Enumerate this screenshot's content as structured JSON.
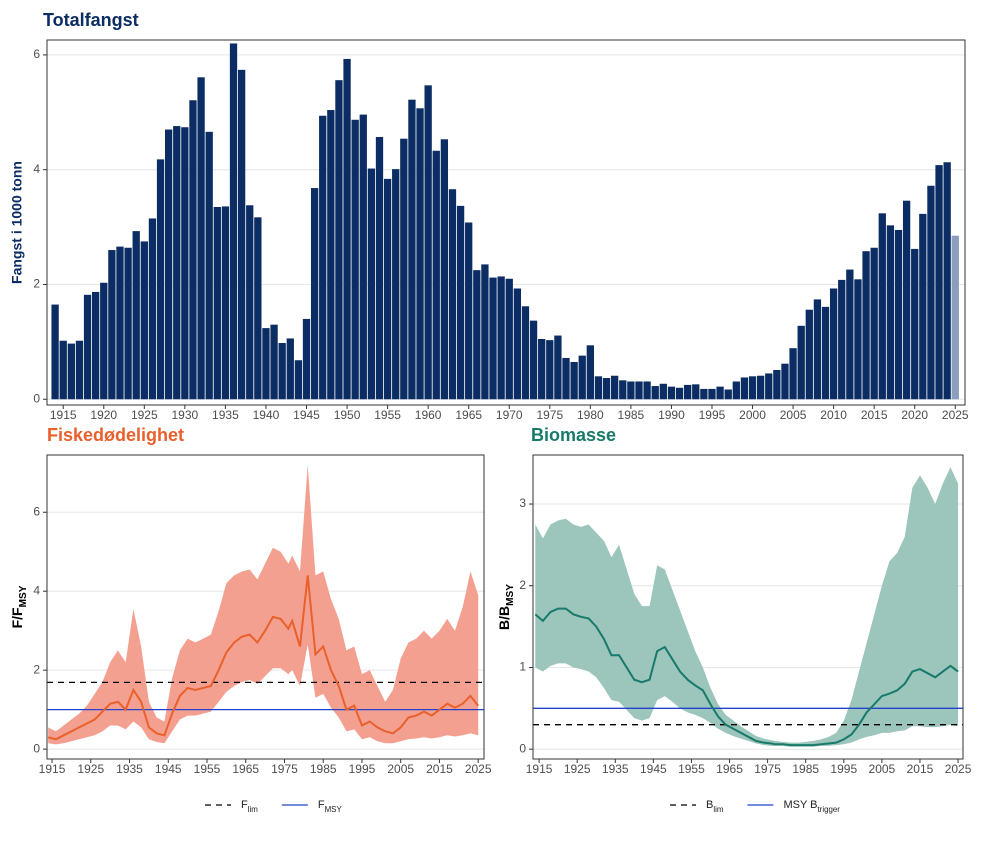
{
  "chart_data": [
    {
      "type": "bar",
      "title": "Totalfangst",
      "title_color": "#0b2d63",
      "ylabel": "Fangst i 1000 tonn",
      "ylabel_color": "#0b2d63",
      "x": [
        1914,
        1915,
        1916,
        1917,
        1918,
        1919,
        1920,
        1921,
        1922,
        1923,
        1924,
        1925,
        1926,
        1927,
        1928,
        1929,
        1930,
        1931,
        1932,
        1933,
        1934,
        1935,
        1936,
        1937,
        1938,
        1939,
        1940,
        1941,
        1942,
        1943,
        1944,
        1945,
        1946,
        1947,
        1948,
        1949,
        1950,
        1951,
        1952,
        1953,
        1954,
        1955,
        1956,
        1957,
        1958,
        1959,
        1960,
        1961,
        1962,
        1963,
        1964,
        1965,
        1966,
        1967,
        1968,
        1969,
        1970,
        1971,
        1972,
        1973,
        1974,
        1975,
        1976,
        1977,
        1978,
        1979,
        1980,
        1981,
        1982,
        1983,
        1984,
        1985,
        1986,
        1987,
        1988,
        1989,
        1990,
        1991,
        1992,
        1993,
        1994,
        1995,
        1996,
        1997,
        1998,
        1999,
        2000,
        2001,
        2002,
        2003,
        2004,
        2005,
        2006,
        2007,
        2008,
        2009,
        2010,
        2011,
        2012,
        2013,
        2014,
        2015,
        2016,
        2017,
        2018,
        2019,
        2020,
        2021,
        2022,
        2023,
        2024,
        2025
      ],
      "values": [
        1.65,
        1.02,
        0.97,
        1.02,
        1.82,
        1.87,
        2.03,
        2.6,
        2.66,
        2.64,
        2.93,
        2.75,
        3.15,
        4.18,
        4.7,
        4.76,
        4.74,
        5.21,
        5.61,
        4.66,
        3.35,
        3.36,
        6.2,
        5.74,
        3.38,
        3.17,
        1.24,
        1.3,
        0.98,
        1.06,
        0.68,
        1.4,
        3.68,
        4.94,
        5.04,
        5.56,
        5.93,
        4.87,
        4.96,
        4.02,
        4.57,
        3.84,
        4.01,
        4.54,
        5.22,
        5.07,
        5.47,
        4.33,
        4.53,
        3.66,
        3.37,
        3.08,
        2.25,
        2.35,
        2.12,
        2.14,
        2.1,
        1.93,
        1.62,
        1.37,
        1.05,
        1.03,
        1.11,
        0.72,
        0.65,
        0.76,
        0.94,
        0.4,
        0.37,
        0.41,
        0.33,
        0.31,
        0.31,
        0.31,
        0.23,
        0.27,
        0.22,
        0.2,
        0.25,
        0.26,
        0.18,
        0.18,
        0.22,
        0.17,
        0.31,
        0.38,
        0.4,
        0.41,
        0.45,
        0.51,
        0.62,
        0.89,
        1.28,
        1.56,
        1.74,
        1.61,
        1.93,
        2.08,
        2.26,
        2.09,
        2.58,
        2.64,
        3.24,
        3.03,
        2.95,
        3.46,
        2.62,
        3.23,
        3.72,
        4.08,
        4.13,
        2.85
      ],
      "colors": [
        "#0b2d63",
        "#0b2d63",
        "#0b2d63",
        "#0b2d63",
        "#0b2d63",
        "#0b2d63",
        "#0b2d63",
        "#0b2d63",
        "#0b2d63",
        "#0b2d63",
        "#0b2d63",
        "#0b2d63",
        "#0b2d63",
        "#0b2d63",
        "#0b2d63",
        "#0b2d63",
        "#0b2d63",
        "#0b2d63",
        "#0b2d63",
        "#0b2d63",
        "#0b2d63",
        "#0b2d63",
        "#0b2d63",
        "#0b2d63",
        "#0b2d63",
        "#0b2d63",
        "#0b2d63",
        "#0b2d63",
        "#0b2d63",
        "#0b2d63",
        "#0b2d63",
        "#0b2d63",
        "#0b2d63",
        "#0b2d63",
        "#0b2d63",
        "#0b2d63",
        "#0b2d63",
        "#0b2d63",
        "#0b2d63",
        "#0b2d63",
        "#0b2d63",
        "#0b2d63",
        "#0b2d63",
        "#0b2d63",
        "#0b2d63",
        "#0b2d63",
        "#0b2d63",
        "#0b2d63",
        "#0b2d63",
        "#0b2d63",
        "#0b2d63",
        "#0b2d63",
        "#0b2d63",
        "#0b2d63",
        "#0b2d63",
        "#0b2d63",
        "#0b2d63",
        "#0b2d63",
        "#0b2d63",
        "#0b2d63",
        "#0b2d63",
        "#0b2d63",
        "#0b2d63",
        "#0b2d63",
        "#0b2d63",
        "#0b2d63",
        "#0b2d63",
        "#0b2d63",
        "#0b2d63",
        "#0b2d63",
        "#0b2d63",
        "#0b2d63",
        "#0b2d63",
        "#0b2d63",
        "#0b2d63",
        "#0b2d63",
        "#0b2d63",
        "#0b2d63",
        "#0b2d63",
        "#0b2d63",
        "#0b2d63",
        "#0b2d63",
        "#0b2d63",
        "#0b2d63",
        "#0b2d63",
        "#0b2d63",
        "#0b2d63",
        "#0b2d63",
        "#0b2d63",
        "#0b2d63",
        "#0b2d63",
        "#0b2d63",
        "#0b2d63",
        "#0b2d63",
        "#0b2d63",
        "#0b2d63",
        "#0b2d63",
        "#0b2d63",
        "#0b2d63",
        "#0b2d63",
        "#0b2d63",
        "#0b2d63",
        "#0b2d63",
        "#0b2d63",
        "#0b2d63",
        "#0b2d63",
        "#0b2d63",
        "#0b2d63",
        "#0b2d63",
        "#0b2d63",
        "#0b2d63",
        "#8a9dbf"
      ],
      "xlim": [
        1913,
        2026.2
      ],
      "xticks": [
        1915,
        1920,
        1925,
        1930,
        1935,
        1940,
        1945,
        1950,
        1955,
        1960,
        1965,
        1970,
        1975,
        1980,
        1985,
        1990,
        1995,
        2000,
        2005,
        2010,
        2015,
        2020,
        2025
      ],
      "ylim": [
        -0.1,
        6.26
      ],
      "yticks": [
        0,
        2,
        4,
        6
      ],
      "grid": true
    },
    {
      "type": "line",
      "title": "Fiskedødelighet",
      "title_color": "#e8602c",
      "ylabel": [
        "F/F",
        "MSY"
      ],
      "ylabel_color": "#000000",
      "x": [
        1914,
        1916,
        1918,
        1920,
        1922,
        1924,
        1926,
        1928,
        1930,
        1932,
        1934,
        1936,
        1938,
        1940,
        1942,
        1944,
        1946,
        1948,
        1950,
        1952,
        1954,
        1956,
        1958,
        1960,
        1962,
        1964,
        1966,
        1968,
        1970,
        1972,
        1974,
        1976,
        1977,
        1979,
        1981,
        1983,
        1985,
        1987,
        1989,
        1991,
        1993,
        1995,
        1997,
        1999,
        2001,
        2003,
        2005,
        2007,
        2009,
        2011,
        2013,
        2015,
        2017,
        2019,
        2021,
        2023,
        2025
      ],
      "series": [
        {
          "color": "#e8602c",
          "values": [
            0.3,
            0.25,
            0.35,
            0.45,
            0.55,
            0.65,
            0.75,
            0.95,
            1.15,
            1.2,
            1.0,
            1.5,
            1.2,
            0.55,
            0.4,
            0.35,
            0.9,
            1.35,
            1.55,
            1.5,
            1.55,
            1.6,
            2.0,
            2.45,
            2.7,
            2.85,
            2.9,
            2.7,
            3.0,
            3.35,
            3.3,
            3.05,
            3.25,
            2.6,
            4.4,
            2.4,
            2.6,
            2.0,
            1.6,
            1.0,
            1.1,
            0.6,
            0.7,
            0.55,
            0.45,
            0.4,
            0.55,
            0.8,
            0.85,
            0.95,
            0.85,
            1.0,
            1.15,
            1.05,
            1.15,
            1.35,
            1.1
          ]
        }
      ],
      "band": {
        "color": "#f4a090",
        "high": [
          0.55,
          0.45,
          0.6,
          0.75,
          0.9,
          1.1,
          1.4,
          1.7,
          2.2,
          2.5,
          2.2,
          3.55,
          2.6,
          1.2,
          0.8,
          0.7,
          1.8,
          2.5,
          2.8,
          2.7,
          2.8,
          2.9,
          3.5,
          4.2,
          4.4,
          4.5,
          4.55,
          4.3,
          4.7,
          5.1,
          5.0,
          4.7,
          4.9,
          4.5,
          7.2,
          4.4,
          4.5,
          3.8,
          3.3,
          2.5,
          2.6,
          1.9,
          2.0,
          1.6,
          1.2,
          1.5,
          2.3,
          2.7,
          2.8,
          3.0,
          2.8,
          3.0,
          3.3,
          3.0,
          3.6,
          4.5,
          3.9
        ],
        "low": [
          0.15,
          0.12,
          0.15,
          0.2,
          0.25,
          0.3,
          0.35,
          0.45,
          0.6,
          0.6,
          0.5,
          0.7,
          0.55,
          0.25,
          0.18,
          0.15,
          0.45,
          0.75,
          0.85,
          0.85,
          0.9,
          0.95,
          1.2,
          1.45,
          1.6,
          1.7,
          1.75,
          1.65,
          1.85,
          2.05,
          2.05,
          1.9,
          2.0,
          1.6,
          2.65,
          1.3,
          1.4,
          1.05,
          0.8,
          0.45,
          0.5,
          0.25,
          0.3,
          0.2,
          0.15,
          0.15,
          0.2,
          0.25,
          0.27,
          0.3,
          0.27,
          0.3,
          0.35,
          0.32,
          0.35,
          0.4,
          0.35
        ]
      },
      "reference_lines": [
        {
          "name": [
            "F",
            "lim"
          ],
          "value": 1.69,
          "color": "#000000",
          "dashed": true
        },
        {
          "name": [
            "F",
            "MSY"
          ],
          "value": 1.0,
          "color": "#2244cc",
          "dashed": false
        }
      ],
      "xlim": [
        1913.7,
        2026.5
      ],
      "xticks": [
        1915,
        1925,
        1935,
        1945,
        1955,
        1965,
        1975,
        1985,
        1995,
        2005,
        2015,
        2025
      ],
      "ylim": [
        -0.25,
        7.45
      ],
      "yticks": [
        0,
        2,
        4,
        6
      ],
      "grid": true
    },
    {
      "type": "line",
      "title": "Biomasse",
      "title_color": "#177a6a",
      "ylabel": [
        "B/B",
        "MSY"
      ],
      "ylabel_color": "#000000",
      "x": [
        1914,
        1916,
        1918,
        1920,
        1922,
        1924,
        1926,
        1928,
        1930,
        1932,
        1934,
        1936,
        1938,
        1940,
        1942,
        1944,
        1946,
        1948,
        1950,
        1952,
        1954,
        1956,
        1958,
        1960,
        1962,
        1964,
        1966,
        1968,
        1970,
        1972,
        1974,
        1976,
        1977,
        1979,
        1981,
        1983,
        1985,
        1987,
        1989,
        1991,
        1993,
        1995,
        1997,
        1999,
        2001,
        2003,
        2005,
        2007,
        2009,
        2011,
        2013,
        2015,
        2017,
        2019,
        2021,
        2023,
        2025
      ],
      "series": [
        {
          "color": "#177a6a",
          "values": [
            1.65,
            1.57,
            1.68,
            1.72,
            1.72,
            1.65,
            1.62,
            1.6,
            1.5,
            1.35,
            1.15,
            1.15,
            1.0,
            0.85,
            0.82,
            0.85,
            1.2,
            1.25,
            1.1,
            0.95,
            0.85,
            0.78,
            0.72,
            0.55,
            0.4,
            0.3,
            0.25,
            0.2,
            0.15,
            0.1,
            0.08,
            0.07,
            0.06,
            0.06,
            0.05,
            0.05,
            0.05,
            0.05,
            0.06,
            0.07,
            0.08,
            0.12,
            0.18,
            0.3,
            0.45,
            0.55,
            0.65,
            0.68,
            0.72,
            0.8,
            0.95,
            0.98,
            0.93,
            0.88,
            0.95,
            1.02,
            0.95
          ]
        }
      ],
      "band": {
        "color": "#9cc5bc",
        "high": [
          2.75,
          2.58,
          2.75,
          2.8,
          2.82,
          2.75,
          2.72,
          2.75,
          2.65,
          2.55,
          2.35,
          2.5,
          2.2,
          1.9,
          1.75,
          1.75,
          2.25,
          2.2,
          1.95,
          1.7,
          1.45,
          1.2,
          1.0,
          0.75,
          0.55,
          0.42,
          0.35,
          0.28,
          0.22,
          0.16,
          0.13,
          0.11,
          0.1,
          0.09,
          0.08,
          0.08,
          0.09,
          0.1,
          0.12,
          0.15,
          0.2,
          0.35,
          0.6,
          0.95,
          1.3,
          1.65,
          2.0,
          2.3,
          2.4,
          2.6,
          3.2,
          3.35,
          3.2,
          3.0,
          3.25,
          3.45,
          3.25
        ],
        "low": [
          1.0,
          0.95,
          1.02,
          1.05,
          1.05,
          1.0,
          0.98,
          0.95,
          0.88,
          0.75,
          0.6,
          0.58,
          0.48,
          0.38,
          0.35,
          0.38,
          0.6,
          0.65,
          0.58,
          0.5,
          0.45,
          0.42,
          0.38,
          0.32,
          0.25,
          0.2,
          0.16,
          0.13,
          0.1,
          0.07,
          0.05,
          0.04,
          0.04,
          0.04,
          0.03,
          0.03,
          0.03,
          0.03,
          0.04,
          0.04,
          0.05,
          0.06,
          0.08,
          0.12,
          0.15,
          0.17,
          0.2,
          0.2,
          0.22,
          0.23,
          0.28,
          0.28,
          0.27,
          0.27,
          0.28,
          0.3,
          0.28
        ]
      },
      "reference_lines": [
        {
          "name": [
            "B",
            "lim"
          ],
          "value": 0.3,
          "color": "#000000",
          "dashed": true
        },
        {
          "name": [
            "MSY B",
            "trigger"
          ],
          "value": 0.5,
          "color": "#2244cc",
          "dashed": false
        }
      ],
      "xlim": [
        1913.4,
        2026.3
      ],
      "xticks": [
        1915,
        1925,
        1935,
        1945,
        1955,
        1965,
        1975,
        1985,
        1995,
        2005,
        2015,
        2025
      ],
      "ylim": [
        -0.12,
        3.6
      ],
      "yticks": [
        0,
        1,
        2,
        3
      ],
      "grid": true
    }
  ]
}
